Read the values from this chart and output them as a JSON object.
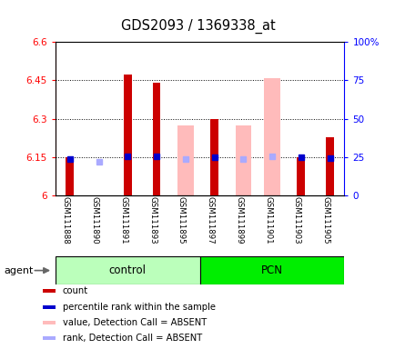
{
  "title": "GDS2093 / 1369338_at",
  "samples": [
    "GSM111888",
    "GSM111890",
    "GSM111891",
    "GSM111893",
    "GSM111895",
    "GSM111897",
    "GSM111899",
    "GSM111901",
    "GSM111903",
    "GSM111905"
  ],
  "left_ylim": [
    6.0,
    6.6
  ],
  "left_yticks": [
    6.0,
    6.15,
    6.3,
    6.45,
    6.6
  ],
  "left_ytick_labels": [
    "6",
    "6.15",
    "6.3",
    "6.45",
    "6.6"
  ],
  "right_ylim": [
    0,
    100
  ],
  "right_yticks": [
    0,
    25,
    50,
    75,
    100
  ],
  "right_ytick_labels": [
    "0",
    "25",
    "50",
    "75",
    "100%"
  ],
  "red_bar_values": [
    6.148,
    null,
    6.473,
    6.44,
    null,
    6.298,
    null,
    null,
    6.148,
    6.228
  ],
  "pink_bar_values": [
    null,
    null,
    null,
    null,
    6.275,
    null,
    6.275,
    6.46,
    null,
    null
  ],
  "blue_marker_values": [
    6.142,
    null,
    6.153,
    6.152,
    null,
    6.148,
    null,
    null,
    6.148,
    6.145
  ],
  "light_blue_marker_values": [
    null,
    6.133,
    null,
    null,
    6.143,
    null,
    6.141,
    6.152,
    null,
    null
  ],
  "dotted_lines": [
    6.15,
    6.3,
    6.45
  ],
  "red_color": "#cc0000",
  "pink_color": "#ffbbbb",
  "blue_color": "#0000cc",
  "light_blue_color": "#aaaaff",
  "control_color_light": "#bbffbb",
  "pcn_color_bright": "#00ee00",
  "legend_items": [
    {
      "color": "#cc0000",
      "label": "count"
    },
    {
      "color": "#0000cc",
      "label": "percentile rank within the sample"
    },
    {
      "color": "#ffbbbb",
      "label": "value, Detection Call = ABSENT"
    },
    {
      "color": "#aaaaff",
      "label": "rank, Detection Call = ABSENT"
    }
  ]
}
